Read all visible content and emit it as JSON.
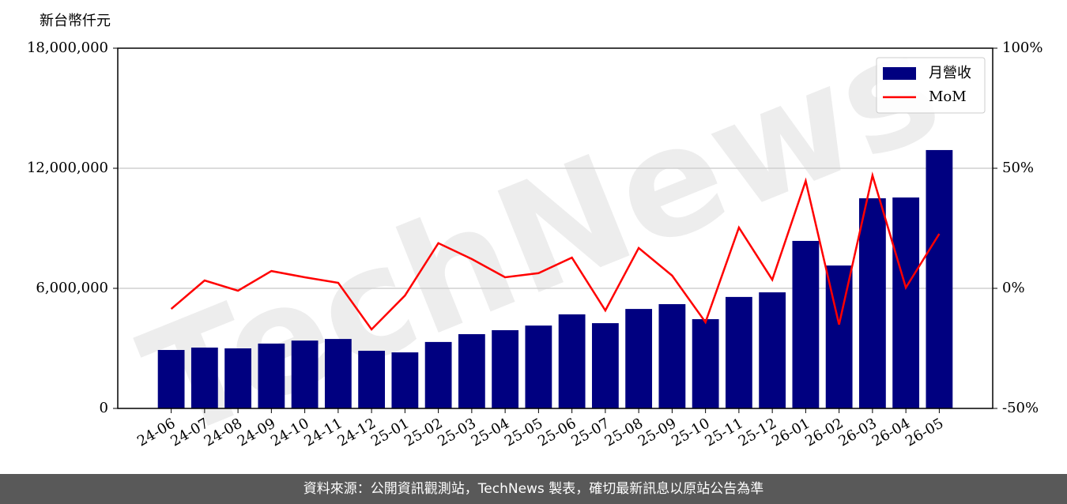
{
  "chart_data": {
    "type": "bar",
    "y_label": "新台幣仟元",
    "watermark": "TechNews",
    "source": "資料來源：公開資訊觀測站，TechNews 製表，確切最新訊息以原站公告為準",
    "categories": [
      "24-06",
      "24-07",
      "24-08",
      "24-09",
      "24-10",
      "24-11",
      "24-12",
      "25-01",
      "25-02",
      "25-03",
      "25-04",
      "25-05",
      "25-06",
      "25-07",
      "25-08",
      "25-09",
      "25-10",
      "25-11",
      "25-12",
      "26-01",
      "26-02",
      "26-03",
      "26-04",
      "26-05"
    ],
    "series": [
      {
        "name": "月營收",
        "type": "bar",
        "color": "#000080",
        "values": [
          2920000,
          3040000,
          3000000,
          3240000,
          3390000,
          3470000,
          2880000,
          2800000,
          3320000,
          3710000,
          3910000,
          4140000,
          4700000,
          4260000,
          4970000,
          5210000,
          4460000,
          5570000,
          5800000,
          8370000,
          7140000,
          10500000,
          10540000,
          12910000
        ]
      },
      {
        "name": "MoM",
        "type": "line",
        "axis": "y2",
        "color": "#ff0000",
        "values": [
          -8.6,
          3.3,
          -1.0,
          7.2,
          4.6,
          2.3,
          -17.1,
          -3.0,
          18.8,
          12.2,
          4.6,
          6.3,
          12.8,
          -9.2,
          16.8,
          5.3,
          -14.1,
          25.3,
          3.6,
          44.7,
          -15.1,
          47.0,
          0.3,
          22.7
        ]
      }
    ],
    "ylim": [
      0,
      18000000
    ],
    "yticks": [
      0,
      {
        "value": 6000000,
        "label": "6,000,000"
      },
      {
        "value": 12000000,
        "label": "12,000,000"
      },
      {
        "value": 18000000,
        "label": "18,000,000"
      }
    ],
    "y2lim": [
      -50,
      100
    ],
    "y2ticks": [
      {
        "value": -50,
        "label": "-50%"
      },
      {
        "value": 0,
        "label": "0%"
      },
      {
        "value": 50,
        "label": "50%"
      },
      {
        "value": 100,
        "label": "100%"
      }
    ],
    "grid": true,
    "legend": "upper right"
  }
}
